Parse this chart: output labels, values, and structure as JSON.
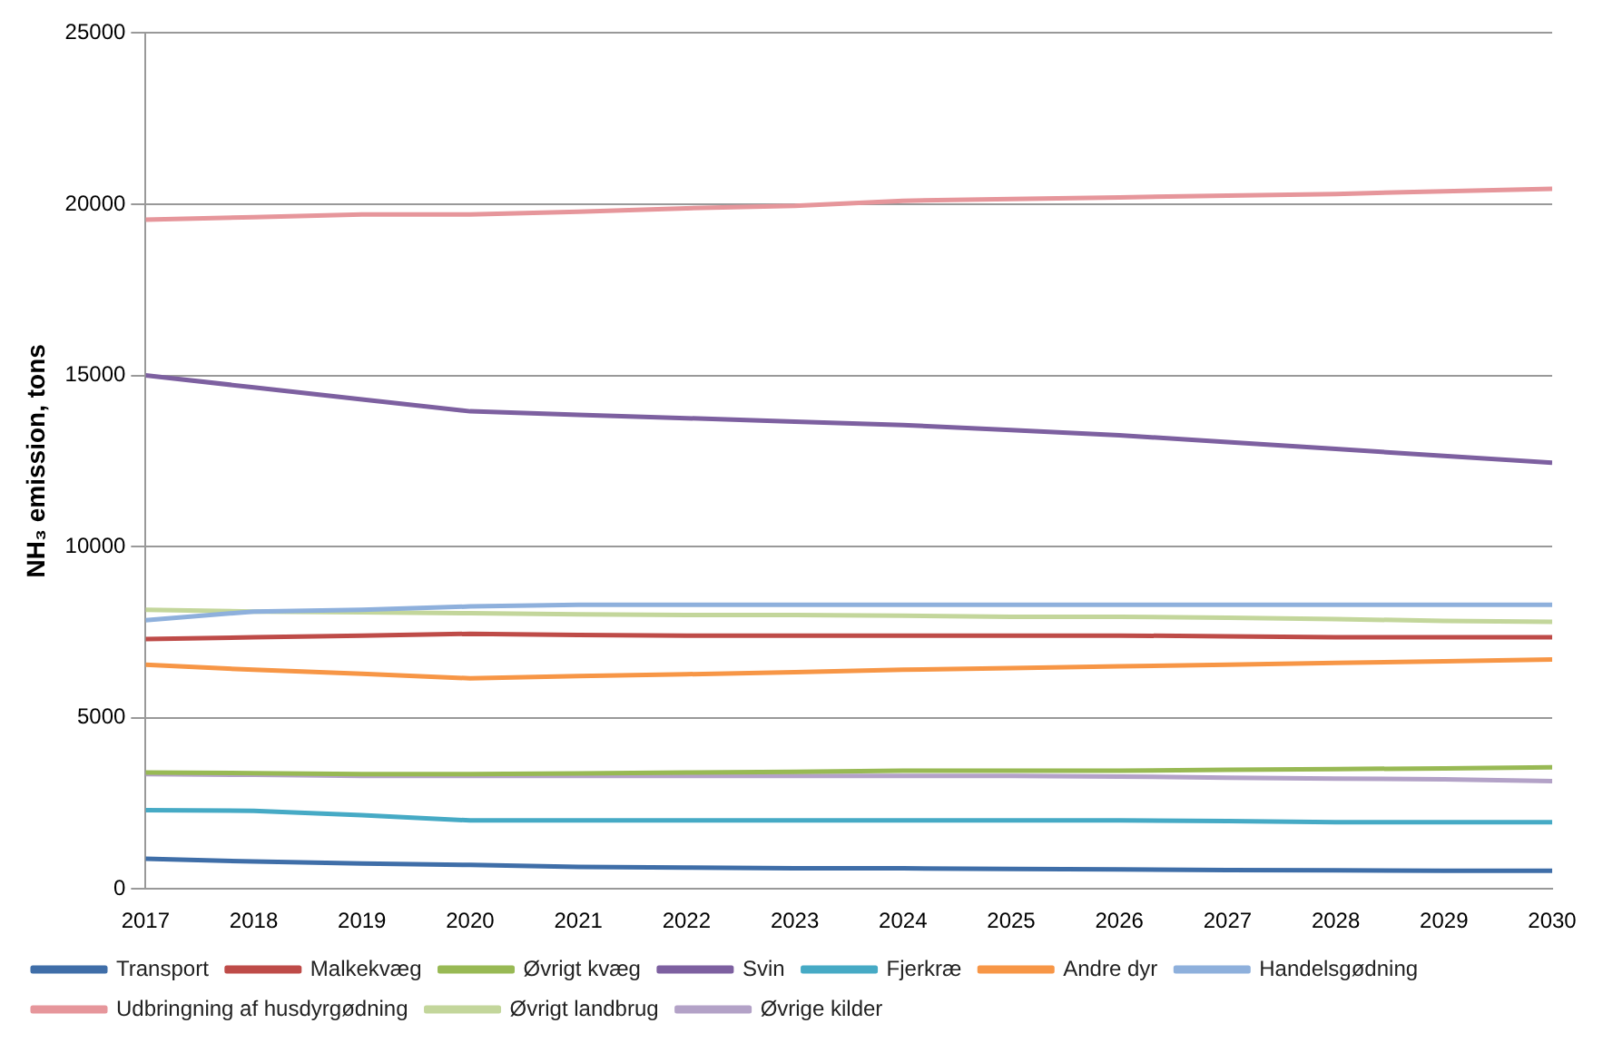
{
  "chart_data": {
    "type": "line",
    "ylabel": "NH₃ emission, tons",
    "x": [
      2017,
      2018,
      2019,
      2020,
      2021,
      2022,
      2023,
      2024,
      2025,
      2026,
      2027,
      2028,
      2029,
      2030
    ],
    "xlim": [
      2017,
      2030
    ],
    "xticks": [
      2017,
      2018,
      2019,
      2020,
      2021,
      2022,
      2023,
      2024,
      2025,
      2026,
      2027,
      2028,
      2029,
      2030
    ],
    "ylim": [
      0,
      25000
    ],
    "yticks": [
      0,
      5000,
      10000,
      15000,
      20000,
      25000
    ],
    "grid": "y",
    "legend": "bottom",
    "marker": "none",
    "line_style": "solid",
    "series": [
      {
        "name": "Transport",
        "color": "#3f6ea8",
        "values": [
          880,
          800,
          740,
          700,
          640,
          620,
          600,
          600,
          580,
          570,
          550,
          540,
          530,
          530
        ]
      },
      {
        "name": "Malkekvæg",
        "color": "#be4b48",
        "values": [
          7300,
          7350,
          7400,
          7450,
          7420,
          7400,
          7400,
          7400,
          7400,
          7400,
          7380,
          7350,
          7350,
          7350
        ]
      },
      {
        "name": "Øvrigt kvæg",
        "color": "#98b954",
        "values": [
          3400,
          3380,
          3350,
          3350,
          3370,
          3400,
          3420,
          3450,
          3450,
          3450,
          3480,
          3500,
          3520,
          3550
        ]
      },
      {
        "name": "Svin",
        "color": "#7d60a0",
        "values": [
          15000,
          14650,
          14300,
          13950,
          13850,
          13750,
          13650,
          13550,
          13400,
          13250,
          13050,
          12850,
          12650,
          12450
        ]
      },
      {
        "name": "Fjerkræ",
        "color": "#46aac5",
        "values": [
          2300,
          2280,
          2150,
          2000,
          2000,
          2000,
          2000,
          2000,
          2000,
          2000,
          1980,
          1950,
          1950,
          1950
        ]
      },
      {
        "name": "Andre dyr",
        "color": "#f79646",
        "values": [
          6550,
          6400,
          6280,
          6150,
          6220,
          6270,
          6330,
          6400,
          6450,
          6500,
          6550,
          6600,
          6650,
          6700
        ]
      },
      {
        "name": "Handelsgødning",
        "color": "#8eb0dc",
        "values": [
          7850,
          8100,
          8150,
          8250,
          8300,
          8300,
          8300,
          8300,
          8300,
          8300,
          8300,
          8300,
          8300,
          8300
        ]
      },
      {
        "name": "Udbringning af husdyrgødning",
        "color": "#e6969b",
        "values": [
          19550,
          19620,
          19700,
          19700,
          19780,
          19880,
          19950,
          20100,
          20150,
          20200,
          20250,
          20300,
          20380,
          20450
        ]
      },
      {
        "name": "Øvrigt landbrug",
        "color": "#c3d69b",
        "values": [
          8150,
          8100,
          8080,
          8050,
          8020,
          8000,
          8000,
          7980,
          7950,
          7950,
          7920,
          7880,
          7830,
          7800
        ]
      },
      {
        "name": "Øvrige kilder",
        "color": "#b3a2c7",
        "values": [
          3350,
          3330,
          3300,
          3300,
          3300,
          3300,
          3300,
          3300,
          3300,
          3280,
          3250,
          3220,
          3200,
          3150
        ]
      }
    ]
  }
}
